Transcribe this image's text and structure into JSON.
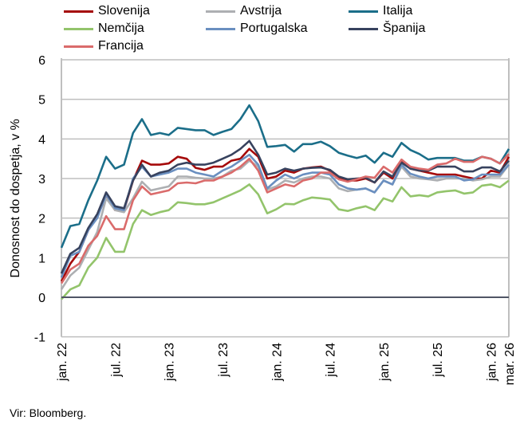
{
  "chart_data": {
    "type": "line",
    "title": "",
    "xlabel": "",
    "ylabel": "Donosnost do dospetja, v %",
    "ylim": [
      -1,
      6
    ],
    "yticks": [
      "-1",
      "0",
      "1",
      "2",
      "3",
      "4",
      "5",
      "6"
    ],
    "xtick_labels": [
      {
        "label": "jan. 22",
        "month_index": 0
      },
      {
        "label": "jul. 22",
        "month_index": 6
      },
      {
        "label": "jan. 23",
        "month_index": 12
      },
      {
        "label": "jul. 23",
        "month_index": 18
      },
      {
        "label": "jan. 24",
        "month_index": 24
      },
      {
        "label": "jul. 24",
        "month_index": 30
      },
      {
        "label": "jan. 25",
        "month_index": 36
      },
      {
        "label": "jul. 25",
        "month_index": 42
      },
      {
        "label": "jan. 26",
        "month_index": 48
      },
      {
        "label": "mar. 26",
        "month_index": 50
      }
    ],
    "x_note": "monthly observations, jan. 2022 – mar. 2026",
    "legend_placement": "top",
    "grid": true,
    "series": [
      {
        "name": "Slovenija",
        "color": "#a50a0a",
        "values": [
          0.4,
          0.85,
          1.15,
          1.7,
          2.05,
          2.55,
          2.2,
          2.2,
          2.95,
          3.45,
          3.35,
          3.35,
          3.38,
          3.55,
          3.5,
          3.27,
          3.22,
          3.3,
          3.3,
          3.45,
          3.5,
          3.75,
          3.55,
          3.0,
          3.05,
          3.2,
          3.15,
          3.25,
          3.28,
          3.3,
          3.2,
          3.0,
          2.95,
          2.95,
          3.0,
          2.9,
          3.15,
          3.0,
          3.45,
          3.25,
          3.2,
          3.15,
          3.1,
          3.1,
          3.1,
          3.05,
          3.0,
          3.0,
          3.2,
          3.15,
          3.55
        ]
      },
      {
        "name": "Avstrija",
        "color": "#adafb2",
        "values": [
          0.2,
          0.55,
          0.75,
          1.2,
          1.65,
          2.5,
          2.2,
          2.15,
          2.5,
          2.92,
          2.7,
          2.75,
          2.8,
          3.05,
          3.05,
          3.02,
          3.0,
          3.0,
          3.05,
          3.2,
          3.25,
          3.45,
          3.3,
          2.72,
          2.8,
          2.95,
          2.9,
          3.0,
          3.05,
          3.05,
          3.0,
          2.75,
          2.68,
          2.72,
          2.75,
          2.65,
          2.95,
          2.85,
          3.3,
          3.05,
          3.0,
          2.98,
          2.95,
          3.0,
          3.0,
          3.0,
          2.95,
          2.98,
          3.05,
          3.05,
          3.35
        ]
      },
      {
        "name": "Italija",
        "color": "#1b6e89",
        "values": [
          1.25,
          1.8,
          1.85,
          2.45,
          2.95,
          3.55,
          3.25,
          3.35,
          4.15,
          4.5,
          4.1,
          4.15,
          4.1,
          4.28,
          4.25,
          4.22,
          4.22,
          4.1,
          4.18,
          4.25,
          4.5,
          4.85,
          4.45,
          3.8,
          3.82,
          3.85,
          3.68,
          3.87,
          3.87,
          3.93,
          3.82,
          3.65,
          3.58,
          3.52,
          3.58,
          3.4,
          3.65,
          3.55,
          3.9,
          3.72,
          3.62,
          3.48,
          3.52,
          3.52,
          3.52,
          3.45,
          3.45,
          3.55,
          3.5,
          3.38,
          3.75
        ]
      },
      {
        "name": "Nemčija",
        "color": "#93c46b",
        "values": [
          -0.05,
          0.2,
          0.3,
          0.75,
          1.0,
          1.5,
          1.15,
          1.15,
          1.85,
          2.2,
          2.08,
          2.15,
          2.2,
          2.4,
          2.38,
          2.35,
          2.35,
          2.4,
          2.5,
          2.6,
          2.7,
          2.85,
          2.6,
          2.12,
          2.22,
          2.36,
          2.35,
          2.45,
          2.52,
          2.5,
          2.47,
          2.22,
          2.18,
          2.25,
          2.3,
          2.2,
          2.5,
          2.42,
          2.78,
          2.55,
          2.58,
          2.55,
          2.65,
          2.68,
          2.7,
          2.62,
          2.65,
          2.82,
          2.85,
          2.78,
          2.95
        ]
      },
      {
        "name": "Portugalska",
        "color": "#6a8fc0",
        "values": [
          0.5,
          1.05,
          1.15,
          1.7,
          2.0,
          2.6,
          2.25,
          2.2,
          3.0,
          3.3,
          3.05,
          3.1,
          3.15,
          3.25,
          3.25,
          3.15,
          3.1,
          3.05,
          3.2,
          3.3,
          3.45,
          3.6,
          3.35,
          2.75,
          2.95,
          3.1,
          3.0,
          3.1,
          3.15,
          3.15,
          3.1,
          2.85,
          2.75,
          2.72,
          2.75,
          2.65,
          2.95,
          2.85,
          3.35,
          3.12,
          3.05,
          3.0,
          3.05,
          3.05,
          3.05,
          2.95,
          2.98,
          3.1,
          3.1,
          3.1,
          3.35
        ]
      },
      {
        "name": "Španija",
        "color": "#37425e",
        "values": [
          0.6,
          1.1,
          1.25,
          1.75,
          2.1,
          2.65,
          2.3,
          2.25,
          2.95,
          3.35,
          3.05,
          3.15,
          3.2,
          3.35,
          3.4,
          3.35,
          3.35,
          3.4,
          3.5,
          3.6,
          3.75,
          3.95,
          3.6,
          3.1,
          3.15,
          3.25,
          3.2,
          3.25,
          3.27,
          3.28,
          3.22,
          3.05,
          2.98,
          3.0,
          3.02,
          2.9,
          3.18,
          3.05,
          3.4,
          3.25,
          3.2,
          3.2,
          3.3,
          3.3,
          3.3,
          3.18,
          3.18,
          3.28,
          3.28,
          3.18,
          3.45
        ]
      },
      {
        "name": "Francija",
        "color": "#da6b6b",
        "values": [
          0.35,
          0.7,
          0.85,
          1.3,
          1.55,
          2.05,
          1.72,
          1.72,
          2.45,
          2.8,
          2.6,
          2.65,
          2.7,
          2.88,
          2.9,
          2.88,
          2.95,
          2.95,
          3.05,
          3.15,
          3.3,
          3.5,
          3.2,
          2.65,
          2.75,
          2.85,
          2.8,
          2.95,
          3.0,
          3.15,
          3.15,
          2.98,
          2.92,
          2.98,
          3.05,
          3.02,
          3.3,
          3.15,
          3.48,
          3.3,
          3.25,
          3.22,
          3.35,
          3.38,
          3.5,
          3.42,
          3.42,
          3.55,
          3.5,
          3.38,
          3.62
        ]
      }
    ]
  },
  "source": "Vir: Bloomberg."
}
